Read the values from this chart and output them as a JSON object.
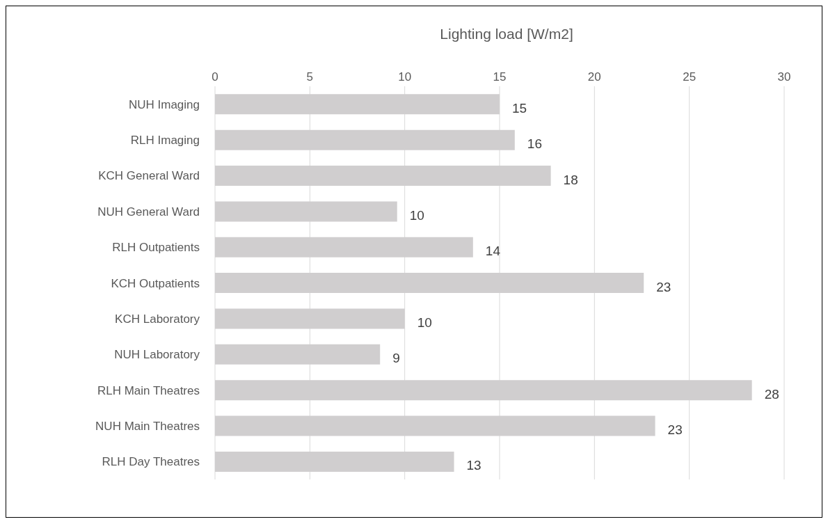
{
  "chart_data": {
    "type": "bar",
    "orientation": "horizontal",
    "xlabel": "Lighting load [W/m2]",
    "categories": [
      "NUH Imaging",
      "RLH Imaging",
      "KCH General Ward",
      "NUH General Ward",
      "RLH Outpatients",
      "KCH Outpatients",
      "KCH Laboratory",
      "NUH Laboratory",
      "RLH Main Theatres",
      "NUH Main Theatres",
      "RLH Day Theatres"
    ],
    "values": [
      15.0,
      15.8,
      17.7,
      9.6,
      13.6,
      22.6,
      10.0,
      8.7,
      28.3,
      23.2,
      12.6
    ],
    "value_labels": [
      "15",
      "16",
      "18",
      "10",
      "14",
      "23",
      "10",
      "9",
      "28",
      "23",
      "13"
    ],
    "color": "#d0cecf",
    "xlim": [
      0,
      30
    ],
    "xticks": [
      0,
      5,
      10,
      15,
      20,
      25,
      30
    ],
    "grid": "x",
    "legend": false
  }
}
